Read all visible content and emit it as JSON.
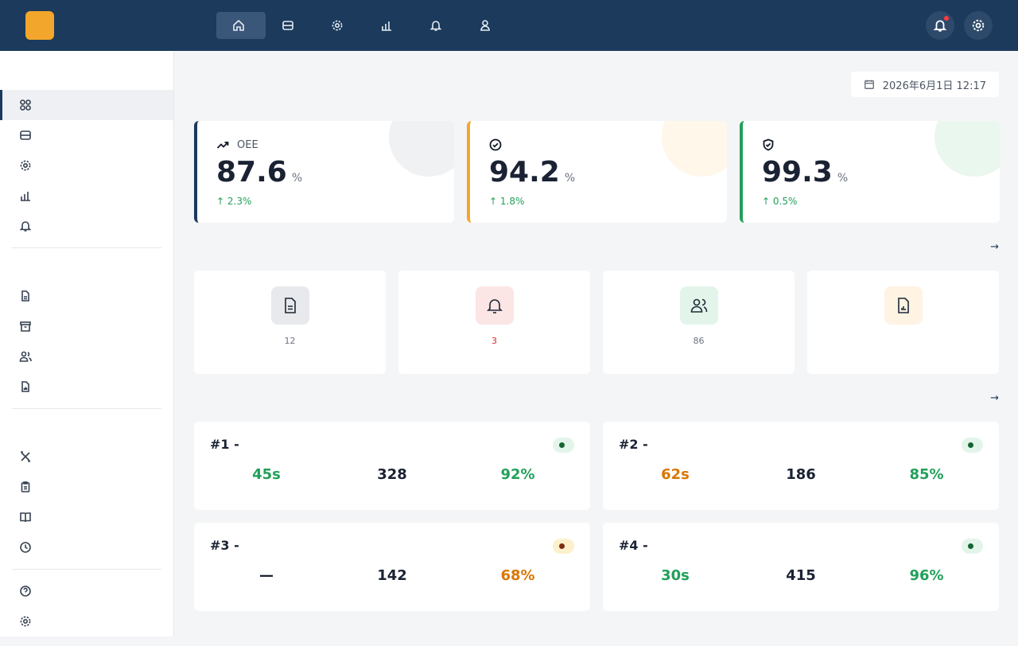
{
  "brand": {
    "logo": "",
    "name": ""
  },
  "nav": [
    {
      "icon": "home-icon",
      "label": "",
      "active": true
    },
    {
      "icon": "database-icon",
      "label": ""
    },
    {
      "icon": "gear-icon",
      "label": ""
    },
    {
      "icon": "bar-chart-icon",
      "label": ""
    },
    {
      "icon": "bell-icon",
      "label": ""
    },
    {
      "icon": "user-icon",
      "label": ""
    }
  ],
  "sidebar": {
    "groups": [
      {
        "title": "",
        "items": [
          {
            "icon": "grid-icon",
            "label": "",
            "active": true
          },
          {
            "icon": "database-icon",
            "label": ""
          },
          {
            "icon": "gear-icon",
            "label": ""
          },
          {
            "icon": "bar-chart-icon",
            "label": ""
          },
          {
            "icon": "bell-icon",
            "label": ""
          }
        ]
      },
      {
        "title": "",
        "items": [
          {
            "icon": "file-icon",
            "label": ""
          },
          {
            "icon": "archive-icon",
            "label": ""
          },
          {
            "icon": "users-icon",
            "label": ""
          },
          {
            "icon": "report-icon",
            "label": ""
          }
        ]
      },
      {
        "title": "",
        "items": [
          {
            "icon": "tools-icon",
            "label": ""
          },
          {
            "icon": "clipboard-icon",
            "label": ""
          },
          {
            "icon": "book-icon",
            "label": ""
          },
          {
            "icon": "clock-icon",
            "label": ""
          }
        ]
      },
      {
        "title": "",
        "items": [
          {
            "icon": "help-icon",
            "label": ""
          },
          {
            "icon": "gear-icon",
            "label": ""
          }
        ]
      }
    ]
  },
  "page": {
    "title": "",
    "subtitle": "",
    "datetime": "2026年6月1日 12:17"
  },
  "kpis": [
    {
      "label": "OEE",
      "value": "87.6",
      "unit": "%",
      "trend": "↑ 2.3%",
      "accent": "#1b3a5c",
      "icon": "trend-up-icon"
    },
    {
      "label": "",
      "value": "94.2",
      "unit": "%",
      "trend": "↑ 1.8%",
      "accent": "#f2a62b",
      "icon": "check-circle-icon"
    },
    {
      "label": "",
      "value": "99.3",
      "unit": "%",
      "trend": "↑ 0.5%",
      "accent": "#22a05a",
      "icon": "shield-check-icon"
    }
  ],
  "quick_section": {
    "title": "",
    "link": "→"
  },
  "quick_actions": [
    {
      "icon": "file-icon",
      "title": "",
      "desc": "12",
      "bg": "#e7e9ec"
    },
    {
      "icon": "bell-icon",
      "title": "",
      "desc": "3",
      "bg": "#fbe5e5",
      "alert": true
    },
    {
      "icon": "users-icon",
      "title": "",
      "desc": "86",
      "bg": "#e3f5ea"
    },
    {
      "icon": "report-icon",
      "title": "",
      "desc": "",
      "bg": "#fff3e3"
    }
  ],
  "equipment_section": {
    "title": "",
    "link": "→"
  },
  "equipment": [
    {
      "name": "#1 -",
      "status": "",
      "warn": false,
      "metrics": [
        {
          "label": "",
          "value": "45s",
          "tone": "green"
        },
        {
          "label": "",
          "value": "328",
          "tone": "dark"
        },
        {
          "label": "",
          "value": "92%",
          "tone": "green"
        }
      ]
    },
    {
      "name": "#2 -",
      "status": "",
      "warn": false,
      "metrics": [
        {
          "label": "",
          "value": "62s",
          "tone": "orange"
        },
        {
          "label": "",
          "value": "186",
          "tone": "dark"
        },
        {
          "label": "",
          "value": "85%",
          "tone": "green"
        }
      ]
    },
    {
      "name": "#3 -",
      "status": "",
      "warn": true,
      "metrics": [
        {
          "label": "",
          "value": "—",
          "tone": "dark"
        },
        {
          "label": "",
          "value": "142",
          "tone": "dark"
        },
        {
          "label": "",
          "value": "68%",
          "tone": "orange"
        }
      ]
    },
    {
      "name": "#4 -",
      "status": "",
      "warn": false,
      "metrics": [
        {
          "label": "",
          "value": "30s",
          "tone": "green"
        },
        {
          "label": "",
          "value": "415",
          "tone": "dark"
        },
        {
          "label": "",
          "value": "96%",
          "tone": "green"
        }
      ]
    }
  ]
}
